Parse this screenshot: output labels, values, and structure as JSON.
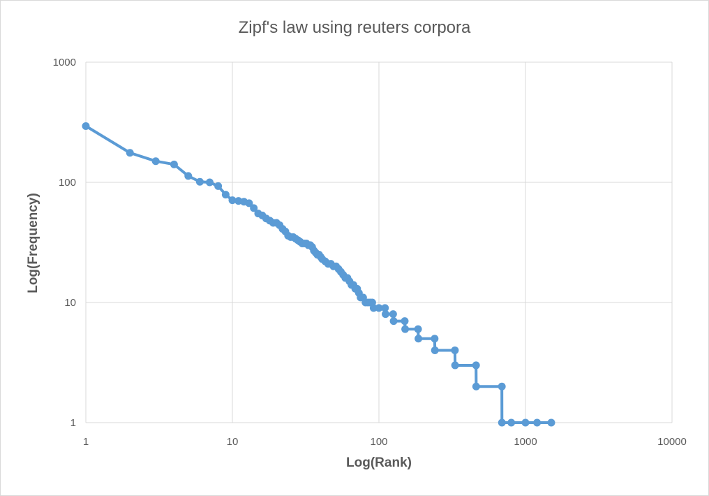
{
  "chart_data": {
    "type": "line",
    "title": "Zipf's law using reuters corpora",
    "xlabel": "Log(Rank)",
    "ylabel": "Log(Frequency)",
    "x_scale": "log",
    "y_scale": "log",
    "xlim": [
      1,
      10000
    ],
    "ylim": [
      1,
      1000
    ],
    "x_ticks": [
      "1",
      "10",
      "100",
      "1000",
      "10000"
    ],
    "y_ticks": [
      "1",
      "10",
      "100",
      "1000"
    ],
    "grid": true,
    "legend": "none",
    "color": "#5b9bd5",
    "series": [
      {
        "points": [
          [
            1,
            294
          ],
          [
            2,
            176
          ],
          [
            3,
            150
          ],
          [
            4,
            141
          ],
          [
            5,
            113
          ],
          [
            6,
            101
          ],
          [
            7,
            100
          ],
          [
            8,
            93
          ],
          [
            9,
            79
          ],
          [
            10,
            71
          ],
          [
            11,
            70
          ],
          [
            12,
            69
          ],
          [
            13,
            67
          ],
          [
            14,
            61
          ],
          [
            15,
            55
          ],
          [
            16,
            53
          ],
          [
            17,
            50
          ],
          [
            18,
            48
          ],
          [
            19,
            46
          ],
          [
            20,
            46
          ],
          [
            21,
            44
          ],
          [
            22,
            41
          ],
          [
            23,
            39
          ],
          [
            24,
            36
          ],
          [
            25,
            35
          ],
          [
            26,
            35
          ],
          [
            27,
            34
          ],
          [
            28,
            33
          ],
          [
            29,
            32
          ],
          [
            30,
            31
          ],
          [
            31,
            31
          ],
          [
            32,
            31
          ],
          [
            33,
            30
          ],
          [
            34,
            30
          ],
          [
            35,
            29
          ],
          [
            36,
            27
          ],
          [
            37,
            26
          ],
          [
            38,
            25
          ],
          [
            39,
            25
          ],
          [
            40,
            24
          ],
          [
            41,
            23
          ],
          [
            43,
            22
          ],
          [
            45,
            21
          ],
          [
            47,
            21
          ],
          [
            49,
            20
          ],
          [
            51,
            20
          ],
          [
            53,
            19
          ],
          [
            55,
            18
          ],
          [
            57,
            17
          ],
          [
            59,
            16
          ],
          [
            61,
            16
          ],
          [
            63,
            15
          ],
          [
            65,
            14
          ],
          [
            67,
            14
          ],
          [
            69,
            13
          ],
          [
            71,
            13
          ],
          [
            73,
            12
          ],
          [
            75,
            11
          ],
          [
            78,
            11
          ],
          [
            81,
            10
          ],
          [
            84,
            10
          ],
          [
            87,
            10
          ],
          [
            90,
            10
          ],
          [
            92,
            9
          ],
          [
            100,
            9
          ],
          [
            110,
            9
          ],
          [
            111,
            8
          ],
          [
            125,
            8
          ],
          [
            126,
            7
          ],
          [
            150,
            7
          ],
          [
            151,
            6
          ],
          [
            185,
            6
          ],
          [
            186,
            5
          ],
          [
            240,
            5
          ],
          [
            241,
            4
          ],
          [
            330,
            4
          ],
          [
            331,
            3
          ],
          [
            460,
            3
          ],
          [
            461,
            2
          ],
          [
            690,
            2
          ],
          [
            691,
            1
          ],
          [
            800,
            1
          ],
          [
            1000,
            1
          ],
          [
            1200,
            1
          ],
          [
            1500,
            1
          ]
        ]
      }
    ]
  }
}
